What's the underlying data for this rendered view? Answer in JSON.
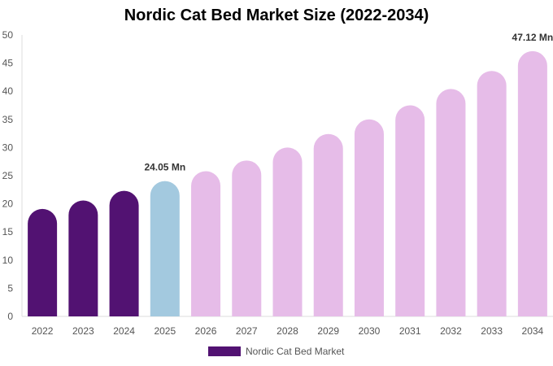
{
  "chart_data": {
    "type": "bar",
    "title": "Nordic Cat Bed Market Size (2022-2034)",
    "categories": [
      "2022",
      "2023",
      "2024",
      "2025",
      "2026",
      "2027",
      "2028",
      "2029",
      "2030",
      "2031",
      "2032",
      "2033",
      "2034"
    ],
    "series": [
      {
        "name": "Nordic Cat Bed Market",
        "values": [
          19.1,
          20.6,
          22.3,
          24.05,
          25.8,
          27.7,
          30.0,
          32.4,
          35.0,
          37.5,
          40.4,
          43.6,
          47.12
        ]
      }
    ],
    "data_labels": {
      "3": "24.05 Mn",
      "12": "47.12 Mn"
    },
    "ylim": [
      0,
      50
    ],
    "yticks": [
      0,
      5,
      10,
      15,
      20,
      25,
      30,
      35,
      40,
      45,
      50
    ],
    "grid": false,
    "legend_position": "bottom",
    "colors": {
      "historic": "#521272",
      "current": "#a3c9df",
      "forecast": "#e6bce8"
    },
    "bar_color_groups": [
      "historic",
      "historic",
      "historic",
      "current",
      "forecast",
      "forecast",
      "forecast",
      "forecast",
      "forecast",
      "forecast",
      "forecast",
      "forecast",
      "forecast"
    ]
  }
}
